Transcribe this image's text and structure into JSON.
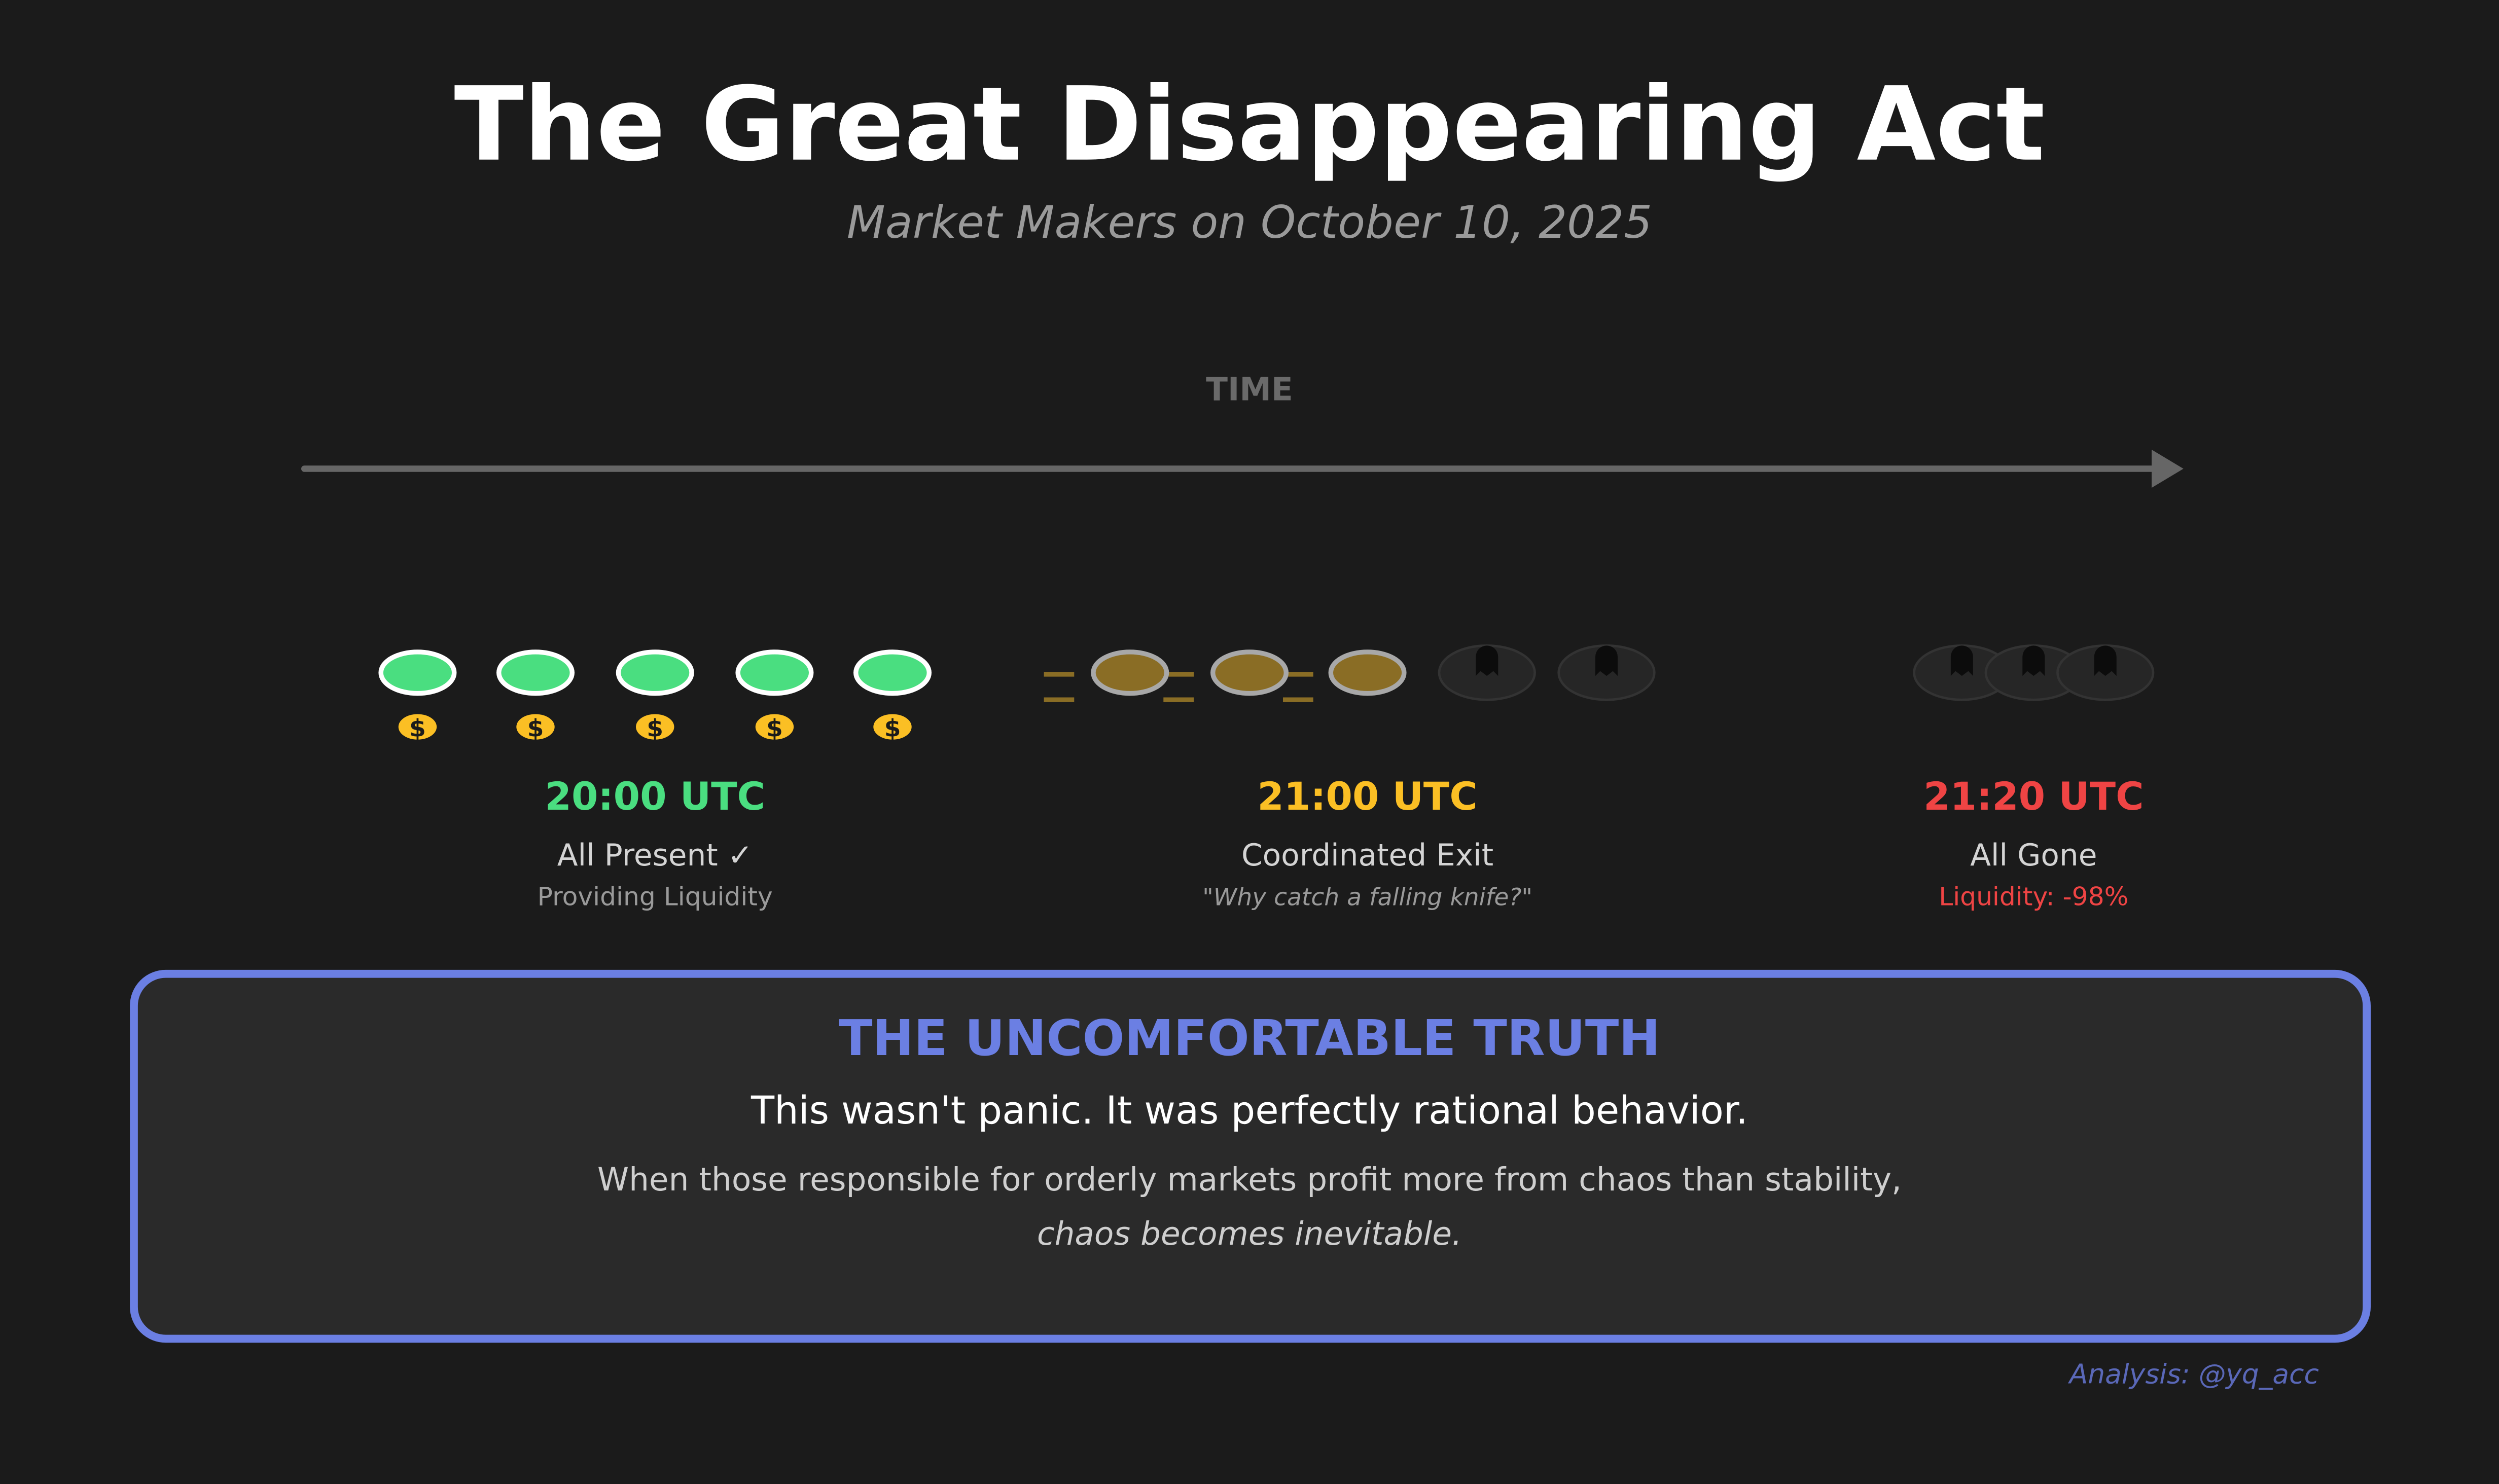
{
  "header": {
    "title": "The Great Disappearing Act",
    "subtitle": "Market Makers on October 10, 2025"
  },
  "timeline": {
    "label": "TIME"
  },
  "stages": [
    {
      "time": "20:00 UTC",
      "status": "All Present ✓",
      "note": "Providing Liquidity",
      "color": "#4ade80",
      "makers_present": 5,
      "icon": "coin-icon"
    },
    {
      "time": "21:00 UTC",
      "status": "Coordinated Exit",
      "note": "\"Why catch a falling knife?\"",
      "color": "#fbbf24",
      "makers_leaving": 3,
      "makers_gone": 2,
      "icon": "ghost-icon"
    },
    {
      "time": "21:20 UTC",
      "status": "All Gone",
      "note": "Liquidity: -98%",
      "color": "#ef4444",
      "makers_gone": 3,
      "icon": "ghost-icon"
    }
  ],
  "truth_box": {
    "heading": "THE UNCOMFORTABLE TRUTH",
    "statement": "This wasn't panic. It was perfectly rational behavior.",
    "line1": "When those responsible for orderly markets profit more from chaos than stability,",
    "line2": "chaos becomes inevitable."
  },
  "credit": "Analysis: @yq_acc",
  "colors": {
    "background": "#1b1b1b",
    "accent": "#6b7fe3",
    "present": "#4ade80",
    "exiting": "#fbbf24",
    "gone": "#ef4444"
  }
}
